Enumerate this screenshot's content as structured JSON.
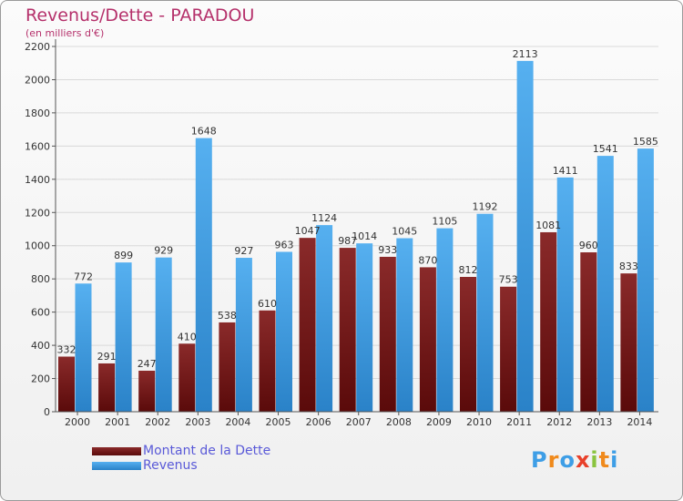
{
  "chart_data": {
    "type": "bar",
    "title": "Revenus/Dette - PARADOU",
    "subtitle": "(en milliers d'€)",
    "categories": [
      "2000",
      "2001",
      "2002",
      "2003",
      "2004",
      "2005",
      "2006",
      "2007",
      "2008",
      "2009",
      "2010",
      "2011",
      "2012",
      "2013",
      "2014"
    ],
    "series": [
      {
        "name": "Montant de la Dette",
        "color": "#7a1f1f",
        "values": [
          332,
          291,
          247,
          410,
          538,
          610,
          1047,
          987,
          933,
          870,
          812,
          753,
          1081,
          960,
          833
        ],
        "labels": [
          "332",
          "291",
          "247",
          "410",
          "538",
          "610",
          "1047",
          "987",
          "933",
          "870",
          "812",
          "753",
          "1081",
          "960",
          "833"
        ]
      },
      {
        "name": "Revenus",
        "color": "#3e9ee6",
        "values": [
          772,
          899,
          929,
          1648,
          927,
          963,
          1124,
          1014,
          1045,
          1105,
          1192,
          2113,
          1411,
          1541,
          1585
        ],
        "labels": [
          "772",
          "899",
          "929",
          "1648",
          "927",
          "963",
          "1124",
          "1014",
          "1045",
          "1105",
          "1192",
          "2113",
          "1411",
          "1541",
          "1585"
        ]
      }
    ],
    "ylim": [
      0,
      2200
    ],
    "yticks": [
      0,
      200,
      400,
      600,
      800,
      1000,
      1200,
      1400,
      1600,
      1800,
      2000,
      2200
    ],
    "grid": true,
    "legend": "bottom-left"
  },
  "logo": {
    "text": "Proxiti"
  }
}
